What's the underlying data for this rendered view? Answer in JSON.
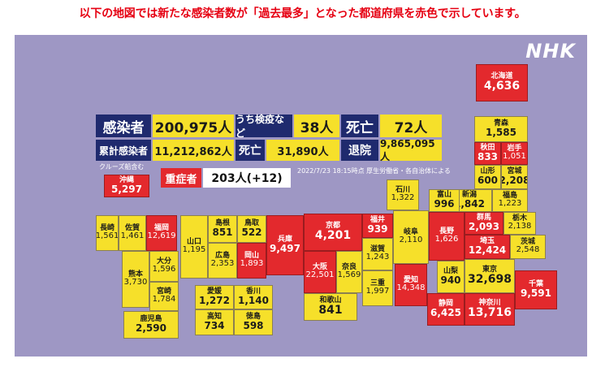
{
  "caption": "以下の地図では新たな感染者数が「過去最多」となった都道府県を赤色で示しています。",
  "logo": "NHK",
  "summary": {
    "new_cases_label": "感染者",
    "new_cases_value": "200,975人",
    "quarantine_label": "うち検疫など",
    "quarantine_value": "38人",
    "deaths_label": "死亡",
    "deaths_value": "72人",
    "cumulative_label": "累計感染者",
    "cumulative_value": "11,212,862人",
    "cum_deaths_label": "死亡",
    "cum_deaths_value": "31,890人",
    "discharged_label": "退院",
    "discharged_value": "9,865,095人",
    "cruise_note": "クルーズ船含む",
    "severe_label": "重症者",
    "severe_value": "203人(+12)",
    "source_note": "2022/7/23 18:15時点 厚生労働省・各自治体による"
  },
  "prefectures": {
    "hokkaido": {
      "name": "北海道",
      "value": "4,636",
      "highlight": true
    },
    "aomori": {
      "name": "青森",
      "value": "1,585",
      "highlight": false
    },
    "akita": {
      "name": "秋田",
      "value": "833",
      "highlight": true
    },
    "iwate": {
      "name": "岩手",
      "value": "1,051",
      "highlight": true
    },
    "yamagata": {
      "name": "山形",
      "value": "600",
      "highlight": false
    },
    "miyagi": {
      "name": "宮城",
      "value": "2,208",
      "highlight": false
    },
    "fukushima": {
      "name": "福島",
      "value": "1,223",
      "highlight": false
    },
    "niigata": {
      "name": "新潟",
      "value": "1,842",
      "highlight": false
    },
    "ishikawa": {
      "name": "石川",
      "value": "1,322",
      "highlight": false
    },
    "toyama": {
      "name": "富山",
      "value": "996",
      "highlight": false
    },
    "gunma": {
      "name": "群馬",
      "value": "2,093",
      "highlight": true
    },
    "tochigi": {
      "name": "栃木",
      "value": "2,138",
      "highlight": false
    },
    "ibaraki": {
      "name": "茨城",
      "value": "2,548",
      "highlight": false
    },
    "saitama": {
      "name": "埼玉",
      "value": "12,424",
      "highlight": true
    },
    "nagano": {
      "name": "長野",
      "value": "1,626",
      "highlight": true
    },
    "gifu": {
      "name": "岐阜",
      "value": "2,110",
      "highlight": false
    },
    "fukui": {
      "name": "福井",
      "value": "939",
      "highlight": true
    },
    "shiga": {
      "name": "滋賀",
      "value": "1,243",
      "highlight": false
    },
    "kyoto": {
      "name": "京都",
      "value": "4,201",
      "highlight": true
    },
    "osaka": {
      "name": "大阪",
      "value": "22,501",
      "highlight": true
    },
    "nara": {
      "name": "奈良",
      "value": "1,569",
      "highlight": false
    },
    "mie": {
      "name": "三重",
      "value": "1,997",
      "highlight": false
    },
    "wakayama": {
      "name": "和歌山",
      "value": "841",
      "highlight": false
    },
    "aichi": {
      "name": "愛知",
      "value": "14,348",
      "highlight": true
    },
    "yamanashi": {
      "name": "山梨",
      "value": "940",
      "highlight": false
    },
    "tokyo": {
      "name": "東京",
      "value": "32,698",
      "highlight": false
    },
    "chiba": {
      "name": "千葉",
      "value": "9,591",
      "highlight": true
    },
    "shizuoka": {
      "name": "静岡",
      "value": "6,425",
      "highlight": true
    },
    "kanagawa": {
      "name": "神奈川",
      "value": "13,716",
      "highlight": true
    },
    "hyogo": {
      "name": "兵庫",
      "value": "9,497",
      "highlight": true
    },
    "tottori": {
      "name": "鳥取",
      "value": "522",
      "highlight": false
    },
    "shimane": {
      "name": "島根",
      "value": "851",
      "highlight": false
    },
    "okayama": {
      "name": "岡山",
      "value": "1,893",
      "highlight": true
    },
    "hiroshima": {
      "name": "広島",
      "value": "2,353",
      "highlight": false
    },
    "yamaguchi": {
      "name": "山口",
      "value": "1,195",
      "highlight": false
    },
    "ehime": {
      "name": "愛媛",
      "value": "1,272",
      "highlight": false
    },
    "kagawa": {
      "name": "香川",
      "value": "1,140",
      "highlight": false
    },
    "kochi": {
      "name": "高知",
      "value": "734",
      "highlight": false
    },
    "tokushima": {
      "name": "徳島",
      "value": "598",
      "highlight": false
    },
    "fukuoka": {
      "name": "福岡",
      "value": "12,619",
      "highlight": true
    },
    "saga": {
      "name": "佐賀",
      "value": "1,461",
      "highlight": false
    },
    "nagasaki": {
      "name": "長崎",
      "value": "1,561",
      "highlight": false
    },
    "oita": {
      "name": "大分",
      "value": "1,596",
      "highlight": false
    },
    "kumamoto": {
      "name": "熊本",
      "value": "3,730",
      "highlight": false
    },
    "miyazaki": {
      "name": "宮崎",
      "value": "1,784",
      "highlight": false
    },
    "kagoshima": {
      "name": "鹿児島",
      "value": "2,590",
      "highlight": false
    },
    "okinawa": {
      "name": "沖縄",
      "value": "5,297",
      "highlight": true
    }
  }
}
